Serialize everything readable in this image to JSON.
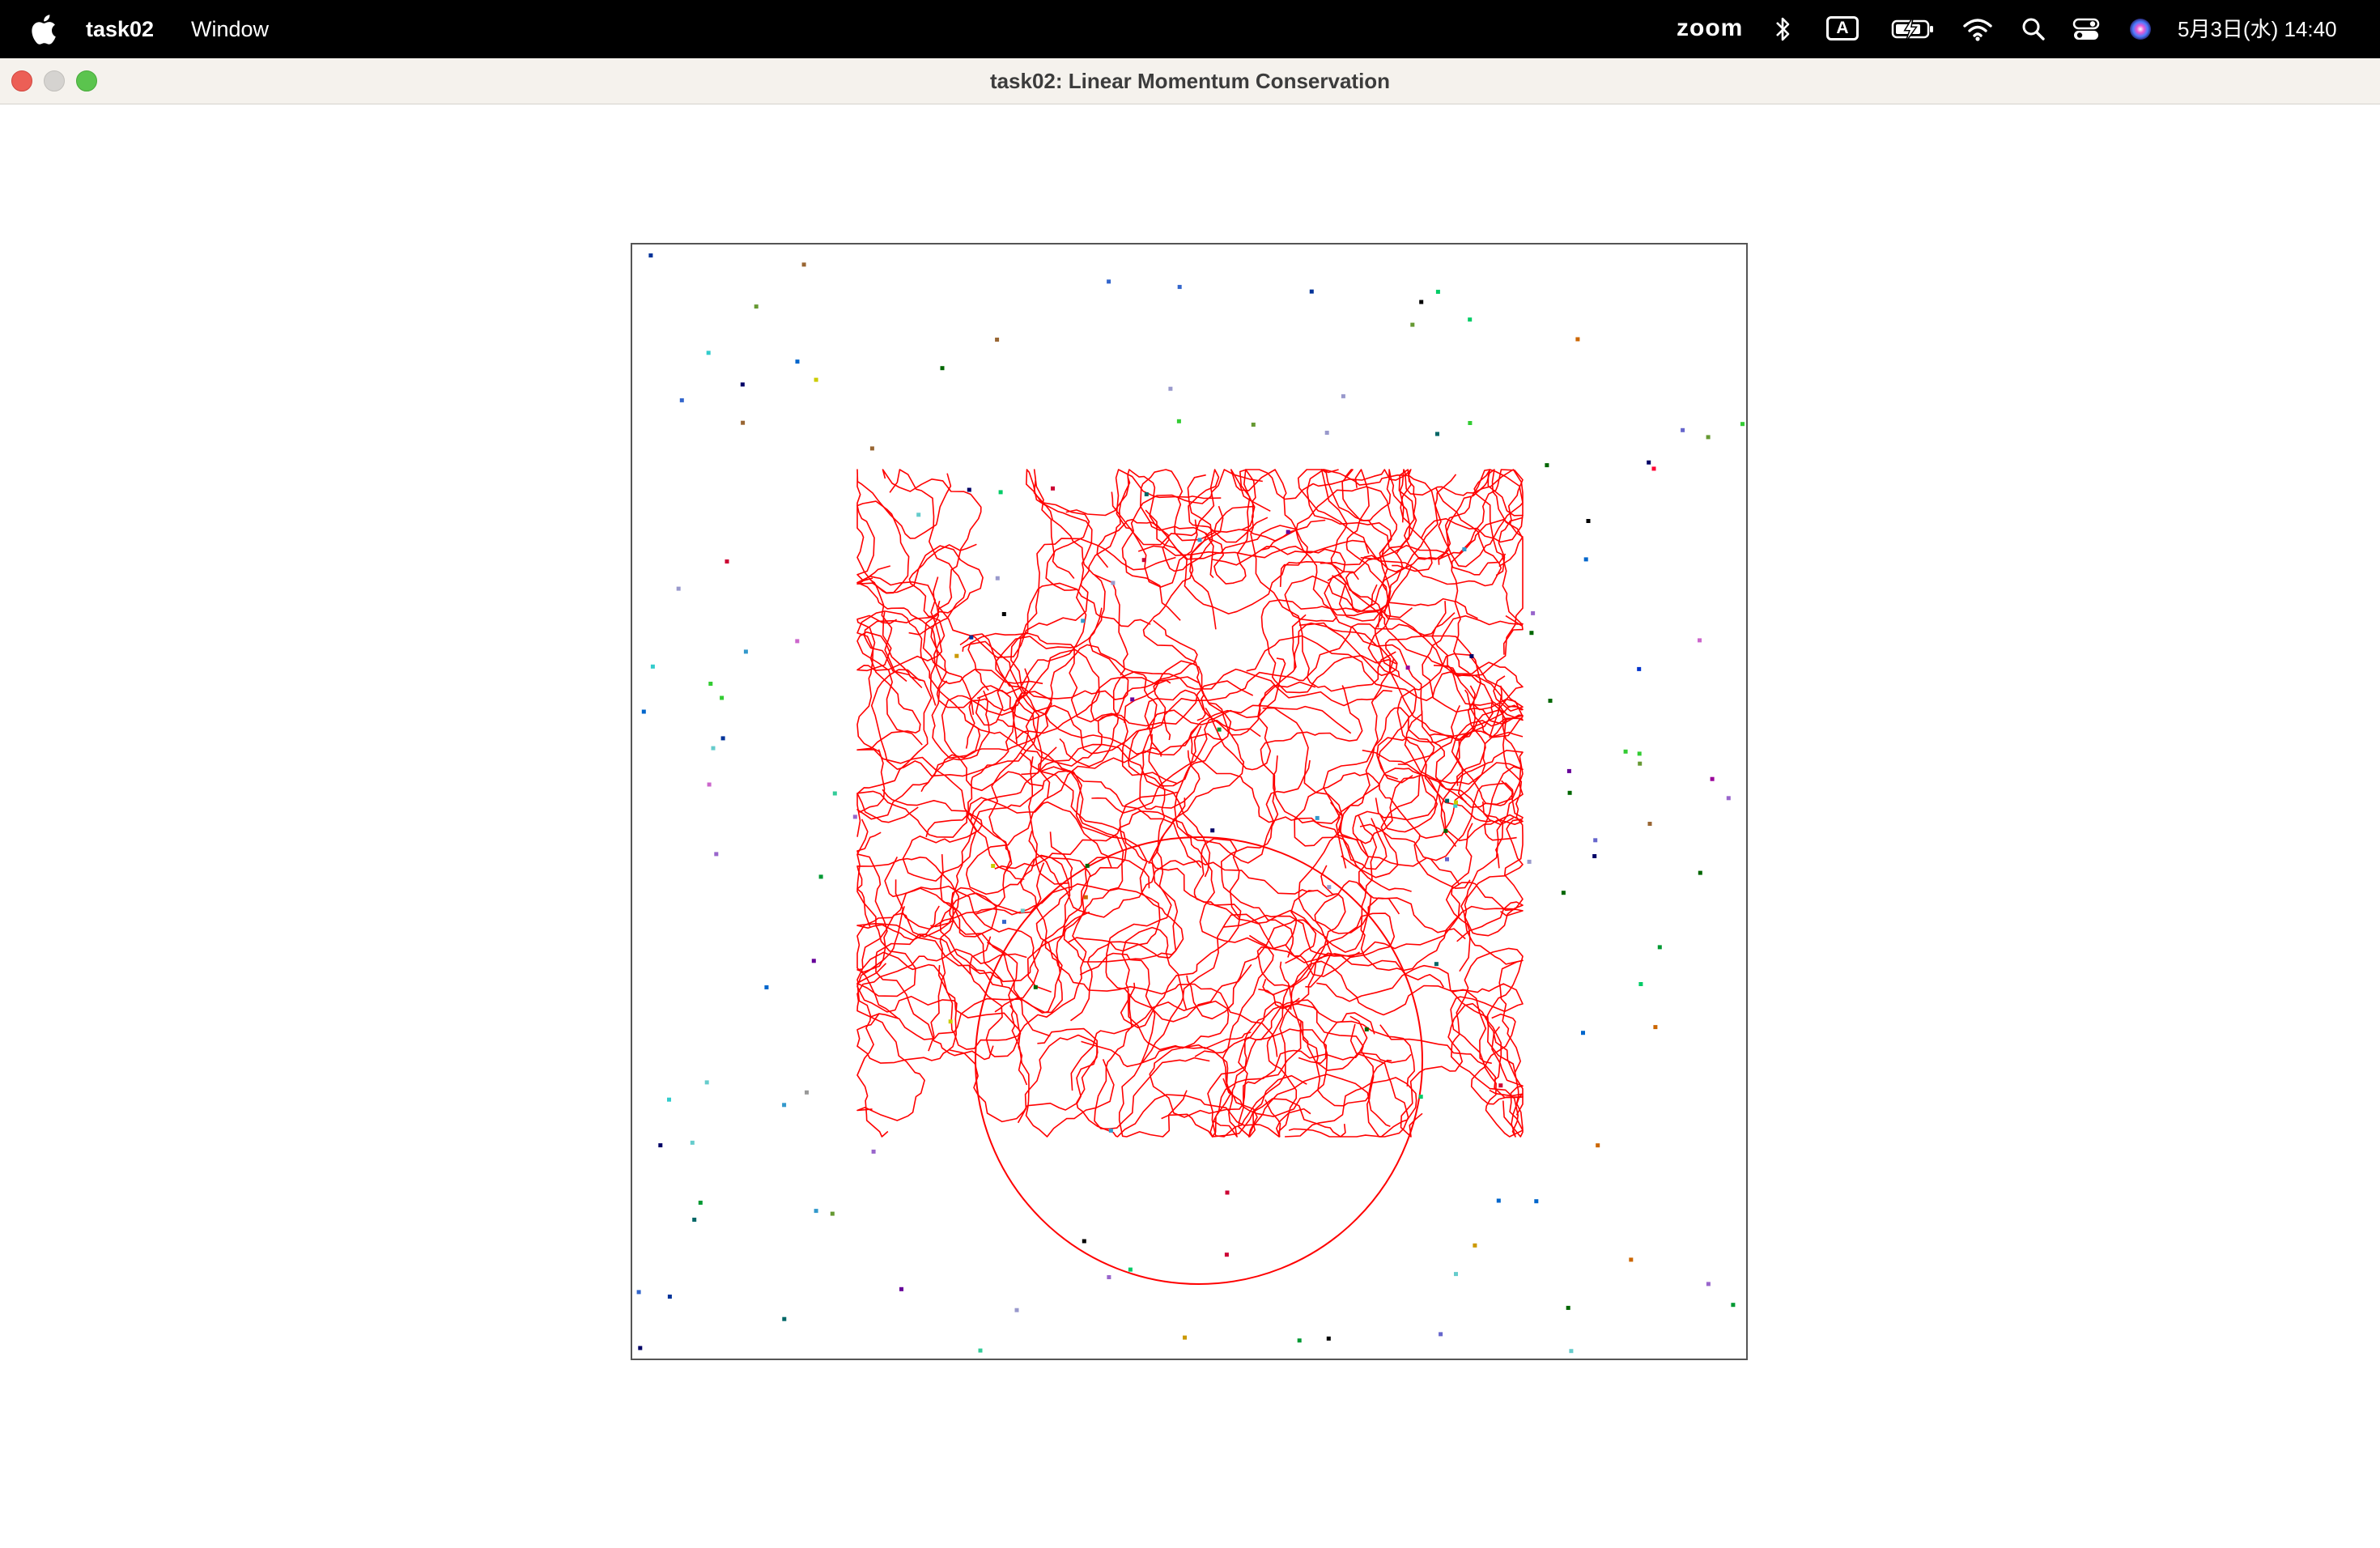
{
  "menubar": {
    "app_name": "task02",
    "menus": [
      "Window"
    ],
    "status": {
      "zoom_label": "zoom",
      "input_source": "A",
      "icons": [
        "bluetooth-icon",
        "input-source-icon",
        "battery-charging-icon",
        "wifi-icon",
        "spotlight-search-icon",
        "control-center-icon",
        "siri-icon"
      ],
      "clock": "5月3日(水)  14:40"
    }
  },
  "window": {
    "title": "task02: Linear Momentum Conservation",
    "traffic_lights": [
      "close",
      "minimize",
      "maximize"
    ]
  },
  "simulation": {
    "trail_color": "#ff0000",
    "background": "#ffffff",
    "border_color": "#555555",
    "particle_colors": [
      "#006600",
      "#33cccc",
      "#000066",
      "#ff0033",
      "#66cccc",
      "#009933",
      "#cc66cc",
      "#6666cc",
      "#006666",
      "#3366cc",
      "#999999",
      "#cccc00",
      "#9966cc",
      "#660099",
      "#0033cc",
      "#33cc33",
      "#cc0033",
      "#0066cc",
      "#669933",
      "#cc6600",
      "#003399",
      "#990099",
      "#00cc66",
      "#33cc99",
      "#996633",
      "#cc9900",
      "#000000",
      "#006600",
      "#3399cc",
      "#9999cc"
    ]
  }
}
